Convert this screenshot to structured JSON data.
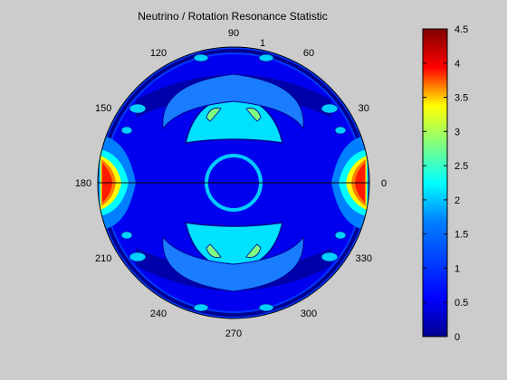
{
  "chart_data": {
    "type": "heatmap",
    "projection": "polar",
    "title": "Neutrino / Rotation Resonance Statistic",
    "angle_ticks": [
      "0",
      "30",
      "60",
      "90",
      "120",
      "150",
      "180",
      "210",
      "240",
      "270",
      "300",
      "330"
    ],
    "extra_label": "1",
    "colorbar": {
      "ticks": [
        "0",
        "0.5",
        "1",
        "1.5",
        "2",
        "2.5",
        "3",
        "3.5",
        "4",
        "4.5"
      ],
      "range": [
        0,
        4.5
      ]
    },
    "colormap": [
      "#00008f",
      "#0000ff",
      "#0080ff",
      "#00ffff",
      "#80ff80",
      "#ffff00",
      "#ff8000",
      "#ff0000",
      "#800000"
    ],
    "background": "#cccccc"
  }
}
